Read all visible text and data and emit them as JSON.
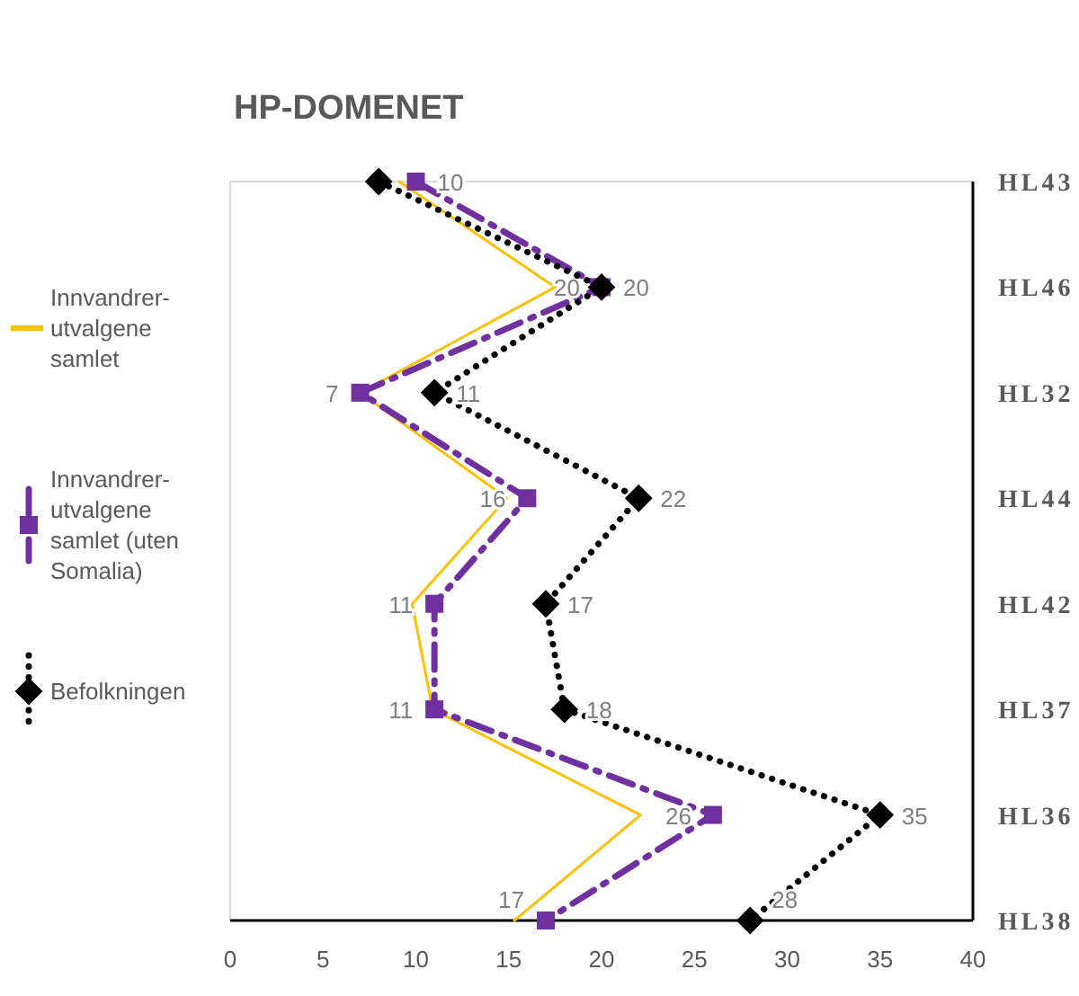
{
  "chart_data": {
    "type": "line",
    "orientation": "horizontal",
    "title": "HP-DOMENET",
    "categories": [
      "HL43",
      "HL46",
      "HL32",
      "HL44",
      "HL42",
      "HL37",
      "HL36",
      "HL38"
    ],
    "xlim": [
      0,
      40
    ],
    "xticks": [
      0,
      5,
      10,
      15,
      20,
      25,
      30,
      35,
      40
    ],
    "grid": false,
    "legend": "left",
    "series": [
      {
        "name": "Innvandrer-utvalgene samlet",
        "color": "#ffc000",
        "marker": "none",
        "line_style": "solid",
        "values": [
          9.1,
          17.5,
          7,
          14.9,
          9.8,
          10.9,
          22.1,
          15.3
        ]
      },
      {
        "name": "Innvandrer-utvalgene samlet (uten Somalia)",
        "color": "#7030a0",
        "marker": "square",
        "line_style": "dashed",
        "values": [
          10,
          20,
          7,
          16,
          11,
          11,
          26,
          17
        ],
        "value_labels": [
          "10",
          "20",
          "7",
          "16",
          "11",
          "11",
          "26",
          "17"
        ]
      },
      {
        "name": "Befolkningen",
        "color": "#000000",
        "marker": "diamond",
        "line_style": "dotted",
        "values": [
          8,
          20,
          11,
          22,
          17,
          18,
          35,
          28
        ],
        "value_labels": [
          null,
          "20",
          "11",
          "22",
          "17",
          "18",
          "35",
          "28"
        ]
      }
    ]
  }
}
